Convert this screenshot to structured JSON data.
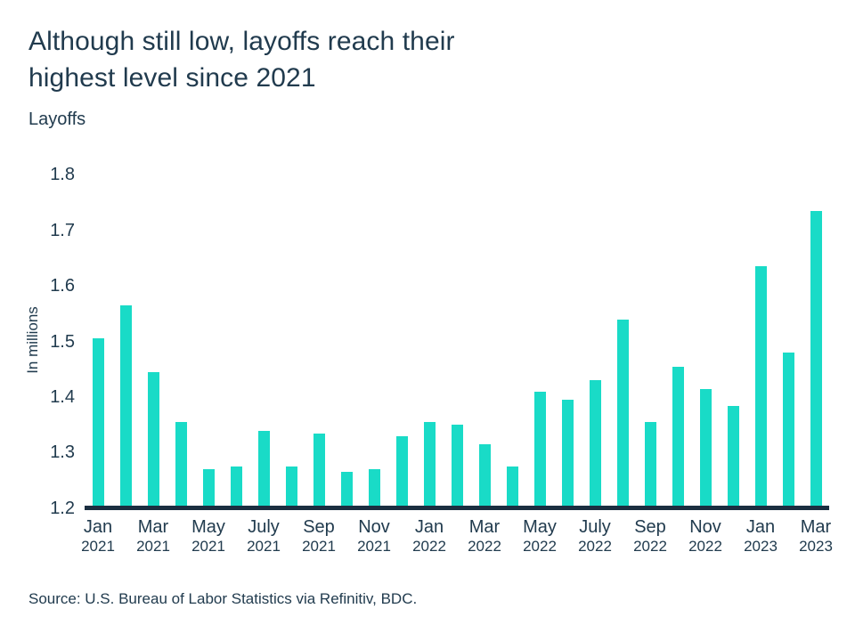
{
  "header": {
    "title_line1": "Although still low, layoffs reach their",
    "title_line2": "highest level since 2021",
    "subtitle": "Layoffs"
  },
  "footer": {
    "source": "Source: U.S. Bureau of Labor Statistics via Refinitiv, BDC."
  },
  "chart_data": {
    "type": "bar",
    "title": "Although still low, layoffs reach their highest level since 2021",
    "subtitle": "Layoffs",
    "xlabel": "",
    "ylabel": "In millions",
    "ylim": [
      1.2,
      1.8
    ],
    "yticks": [
      1.2,
      1.3,
      1.4,
      1.5,
      1.6,
      1.7,
      1.8
    ],
    "grid": false,
    "legend": "none",
    "categories": [
      "Jan 2021",
      "Feb 2021",
      "Mar 2021",
      "Apr 2021",
      "May 2021",
      "Jun 2021",
      "Jul 2021",
      "Aug 2021",
      "Sep 2021",
      "Oct 2021",
      "Nov 2021",
      "Dec 2021",
      "Jan 2022",
      "Feb 2022",
      "Mar 2022",
      "Apr 2022",
      "May 2022",
      "Jun 2022",
      "Jul 2022",
      "Aug 2022",
      "Sep 2022",
      "Oct 2022",
      "Nov 2022",
      "Dec 2022",
      "Jan 2023",
      "Feb 2023",
      "Mar 2023"
    ],
    "values": [
      1.5,
      1.56,
      1.44,
      1.35,
      1.265,
      1.27,
      1.335,
      1.27,
      1.33,
      1.26,
      1.265,
      1.325,
      1.35,
      1.345,
      1.31,
      1.27,
      1.405,
      1.39,
      1.425,
      1.535,
      1.35,
      1.45,
      1.41,
      1.38,
      1.63,
      1.475,
      1.73
    ],
    "x_tick_labels": [
      {
        "month": "Jan",
        "year": "2021"
      },
      {
        "month": "Mar",
        "year": "2021"
      },
      {
        "month": "May",
        "year": "2021"
      },
      {
        "month": "July",
        "year": "2021"
      },
      {
        "month": "Sep",
        "year": "2021"
      },
      {
        "month": "Nov",
        "year": "2021"
      },
      {
        "month": "Jan",
        "year": "2022"
      },
      {
        "month": "Mar",
        "year": "2022"
      },
      {
        "month": "May",
        "year": "2022"
      },
      {
        "month": "July",
        "year": "2022"
      },
      {
        "month": "Sep",
        "year": "2022"
      },
      {
        "month": "Nov",
        "year": "2022"
      },
      {
        "month": "Jan",
        "year": "2023"
      },
      {
        "month": "Mar",
        "year": "2023"
      }
    ],
    "x_tick_every": 2,
    "source": "Source: U.S. Bureau of Labor Statistics via Refinitiv, BDC.",
    "colors": {
      "bar": "#19DBC7",
      "text": "#213B4E",
      "axis_line": "#1B2E40",
      "background": "#FFFFFF"
    }
  }
}
